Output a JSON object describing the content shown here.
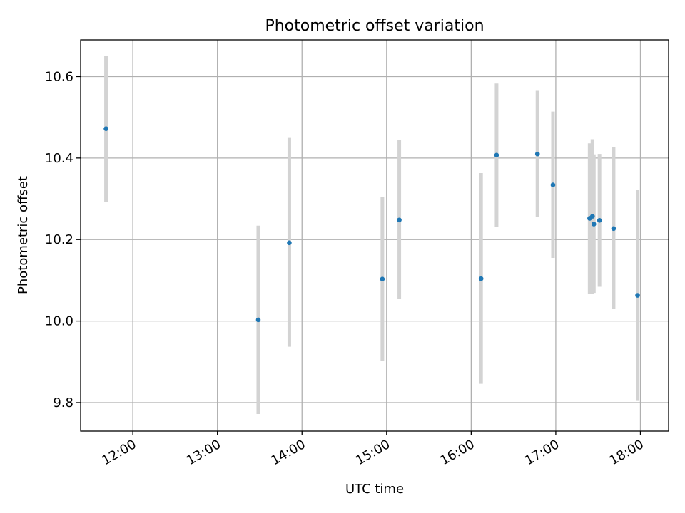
{
  "chart_data": {
    "type": "scatter",
    "title": "Photometric offset variation",
    "xlabel": "UTC time",
    "ylabel": "Photometric offset",
    "x_ticks": [
      "12:00",
      "13:00",
      "14:00",
      "15:00",
      "16:00",
      "17:00",
      "18:00"
    ],
    "y_ticks": [
      "9.8",
      "10.0",
      "10.2",
      "10.4",
      "10.6"
    ],
    "xlim": [
      "11:23",
      "18:20"
    ],
    "ylim": [
      9.73,
      10.69
    ],
    "grid": true,
    "marker_color": "#1f77b4",
    "errorbar_color": "#d3d3d3",
    "series": [
      {
        "points": [
          {
            "x": "11:41",
            "y": 10.472,
            "err_low": 10.293,
            "err_high": 10.651
          },
          {
            "x": "13:29",
            "y": 10.003,
            "err_low": 9.772,
            "err_high": 10.234
          },
          {
            "x": "13:51",
            "y": 10.192,
            "err_low": 9.937,
            "err_high": 10.451
          },
          {
            "x": "14:57",
            "y": 10.103,
            "err_low": 9.902,
            "err_high": 10.304
          },
          {
            "x": "15:09",
            "y": 10.248,
            "err_low": 10.054,
            "err_high": 10.444
          },
          {
            "x": "16:07",
            "y": 10.104,
            "err_low": 9.846,
            "err_high": 10.363
          },
          {
            "x": "16:18",
            "y": 10.407,
            "err_low": 10.231,
            "err_high": 10.583
          },
          {
            "x": "16:47",
            "y": 10.41,
            "err_low": 10.256,
            "err_high": 10.565
          },
          {
            "x": "16:58",
            "y": 10.334,
            "err_low": 10.155,
            "err_high": 10.514
          },
          {
            "x": "17:24",
            "y": 10.252,
            "err_low": 10.067,
            "err_high": 10.436
          },
          {
            "x": "17:26",
            "y": 10.257,
            "err_low": 10.067,
            "err_high": 10.446
          },
          {
            "x": "17:27",
            "y": 10.238,
            "err_low": 10.069,
            "err_high": 10.409
          },
          {
            "x": "17:31",
            "y": 10.247,
            "err_low": 10.084,
            "err_high": 10.41
          },
          {
            "x": "17:41",
            "y": 10.227,
            "err_low": 10.029,
            "err_high": 10.427
          },
          {
            "x": "17:58",
            "y": 10.063,
            "err_low": 9.804,
            "err_high": 10.322
          }
        ]
      }
    ]
  }
}
